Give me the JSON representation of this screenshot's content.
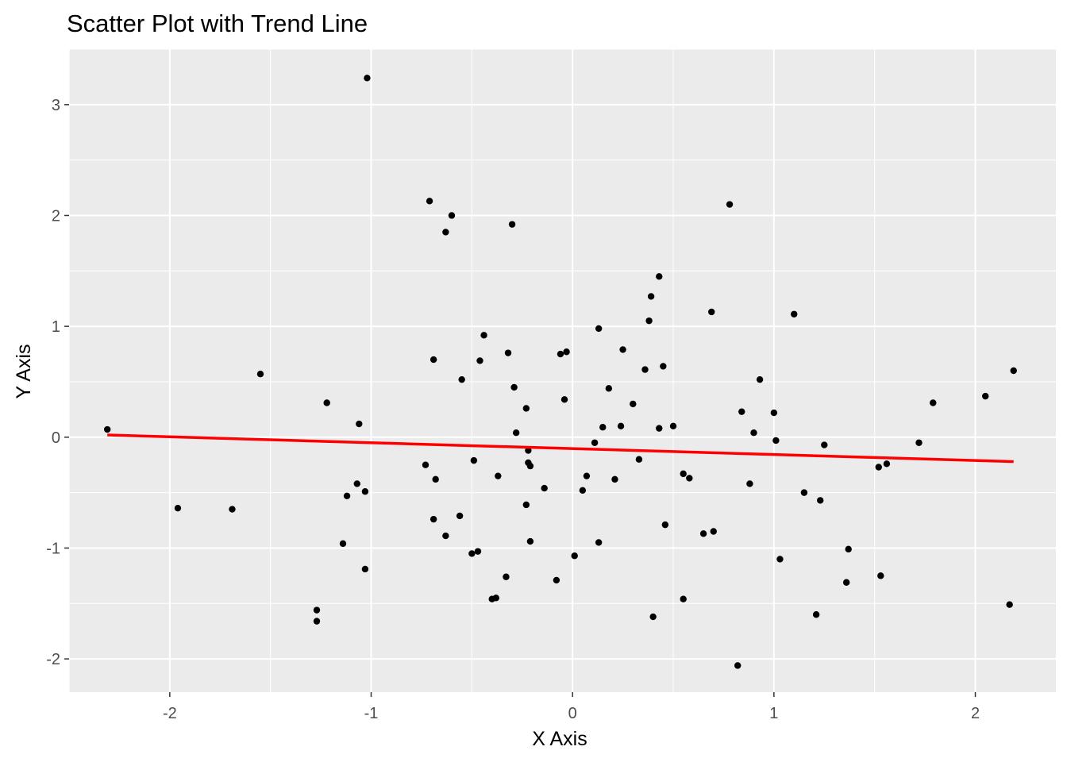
{
  "chart_data": {
    "type": "scatter",
    "title": "Scatter Plot with Trend Line",
    "xlabel": "X Axis",
    "ylabel": "Y Axis",
    "xlim": [
      -2.5,
      2.4
    ],
    "ylim": [
      -2.3,
      3.5
    ],
    "x_ticks": [
      -2,
      -1,
      0,
      1,
      2
    ],
    "x_tick_labels": [
      "-2",
      "-1",
      "0",
      "1",
      "2"
    ],
    "y_ticks": [
      -2,
      -1,
      0,
      1,
      2,
      3
    ],
    "y_tick_labels": [
      "-2",
      "-1",
      "0",
      "1",
      "2",
      "3"
    ],
    "grid": true,
    "background_color": "#ebebeb",
    "point_color": "#000000",
    "trend_color": "#ff0000",
    "points": [
      [
        -2.31,
        0.07
      ],
      [
        -1.96,
        -0.64
      ],
      [
        -1.69,
        -0.65
      ],
      [
        -1.55,
        0.57
      ],
      [
        -1.27,
        -1.56
      ],
      [
        -1.27,
        -1.66
      ],
      [
        -1.22,
        0.31
      ],
      [
        -1.14,
        -0.96
      ],
      [
        -1.12,
        -0.53
      ],
      [
        -1.07,
        -0.42
      ],
      [
        -1.06,
        0.12
      ],
      [
        -1.03,
        -0.49
      ],
      [
        -1.03,
        -1.19
      ],
      [
        -1.02,
        3.24
      ],
      [
        -0.73,
        -0.25
      ],
      [
        -0.71,
        2.13
      ],
      [
        -0.69,
        0.7
      ],
      [
        -0.69,
        -0.74
      ],
      [
        -0.68,
        -0.38
      ],
      [
        -0.63,
        1.85
      ],
      [
        -0.63,
        -0.89
      ],
      [
        -0.6,
        2.0
      ],
      [
        -0.56,
        -0.71
      ],
      [
        -0.55,
        0.52
      ],
      [
        -0.5,
        -1.05
      ],
      [
        -0.49,
        -0.21
      ],
      [
        -0.47,
        -1.03
      ],
      [
        -0.46,
        0.69
      ],
      [
        -0.44,
        0.92
      ],
      [
        -0.4,
        -1.46
      ],
      [
        -0.38,
        -1.45
      ],
      [
        -0.37,
        -0.35
      ],
      [
        -0.33,
        -1.26
      ],
      [
        -0.32,
        0.76
      ],
      [
        -0.3,
        1.92
      ],
      [
        -0.29,
        0.45
      ],
      [
        -0.28,
        0.04
      ],
      [
        -0.23,
        -0.61
      ],
      [
        -0.23,
        0.26
      ],
      [
        -0.22,
        -0.12
      ],
      [
        -0.22,
        -0.23
      ],
      [
        -0.21,
        -0.94
      ],
      [
        -0.21,
        -0.26
      ],
      [
        -0.14,
        -0.46
      ],
      [
        -0.08,
        -1.29
      ],
      [
        -0.06,
        0.75
      ],
      [
        -0.04,
        0.34
      ],
      [
        -0.03,
        0.77
      ],
      [
        0.01,
        -1.07
      ],
      [
        0.05,
        -0.48
      ],
      [
        0.07,
        -0.35
      ],
      [
        0.11,
        -0.05
      ],
      [
        0.13,
        0.98
      ],
      [
        0.13,
        -0.95
      ],
      [
        0.15,
        0.09
      ],
      [
        0.18,
        0.44
      ],
      [
        0.21,
        -0.38
      ],
      [
        0.24,
        0.1
      ],
      [
        0.25,
        0.79
      ],
      [
        0.3,
        0.3
      ],
      [
        0.33,
        -0.2
      ],
      [
        0.36,
        0.61
      ],
      [
        0.38,
        1.05
      ],
      [
        0.39,
        1.27
      ],
      [
        0.4,
        -1.62
      ],
      [
        0.43,
        1.45
      ],
      [
        0.43,
        0.08
      ],
      [
        0.45,
        0.64
      ],
      [
        0.46,
        -0.79
      ],
      [
        0.5,
        0.1
      ],
      [
        0.55,
        -0.33
      ],
      [
        0.55,
        -1.46
      ],
      [
        0.58,
        -0.37
      ],
      [
        0.65,
        -0.87
      ],
      [
        0.69,
        1.13
      ],
      [
        0.7,
        -0.85
      ],
      [
        0.78,
        2.1
      ],
      [
        0.82,
        -2.06
      ],
      [
        0.84,
        0.23
      ],
      [
        0.88,
        -0.42
      ],
      [
        0.9,
        0.04
      ],
      [
        0.93,
        0.52
      ],
      [
        1.0,
        0.22
      ],
      [
        1.01,
        -0.03
      ],
      [
        1.03,
        -1.1
      ],
      [
        1.1,
        1.11
      ],
      [
        1.15,
        -0.5
      ],
      [
        1.21,
        -1.6
      ],
      [
        1.23,
        -0.57
      ],
      [
        1.25,
        -0.07
      ],
      [
        1.36,
        -1.31
      ],
      [
        1.37,
        -1.01
      ],
      [
        1.52,
        -0.27
      ],
      [
        1.53,
        -1.25
      ],
      [
        1.56,
        -0.24
      ],
      [
        1.72,
        -0.05
      ],
      [
        1.79,
        0.31
      ],
      [
        2.05,
        0.37
      ],
      [
        2.17,
        -1.51
      ],
      [
        2.19,
        0.6
      ]
    ],
    "trend_line": {
      "x": [
        -2.31,
        2.19
      ],
      "y": [
        0.02,
        -0.22
      ]
    }
  }
}
